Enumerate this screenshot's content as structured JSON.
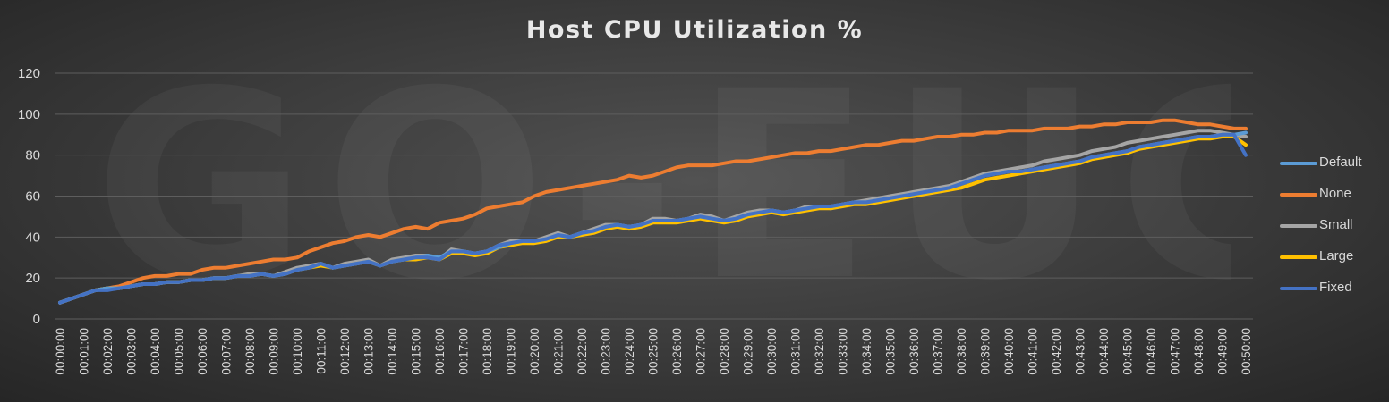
{
  "chart_data": {
    "type": "line",
    "title": "Host CPU Utilization %",
    "watermark": "GO-EUC",
    "xlabel": "",
    "ylabel": "",
    "ylim": [
      0,
      120
    ],
    "yticks": [
      0,
      20,
      40,
      60,
      80,
      100,
      120
    ],
    "grid": true,
    "legend_position": "right",
    "x_start_seconds": 0,
    "x_step_seconds": 30,
    "x_count": 101,
    "x_tick_labels": [
      "00:00:00",
      "00:01:00",
      "00:02:00",
      "00:03:00",
      "00:04:00",
      "00:05:00",
      "00:06:00",
      "00:07:00",
      "00:08:00",
      "00:09:00",
      "00:10:00",
      "00:11:00",
      "00:12:00",
      "00:13:00",
      "00:14:00",
      "00:15:00",
      "00:16:00",
      "00:17:00",
      "00:18:00",
      "00:19:00",
      "00:20:00",
      "00:21:00",
      "00:22:00",
      "00:23:00",
      "00:24:00",
      "00:25:00",
      "00:26:00",
      "00:27:00",
      "00:28:00",
      "00:29:00",
      "00:30:00",
      "00:31:00",
      "00:32:00",
      "00:33:00",
      "00:34:00",
      "00:35:00",
      "00:36:00",
      "00:37:00",
      "00:38:00",
      "00:39:00",
      "00:40:00",
      "00:41:00",
      "00:42:00",
      "00:43:00",
      "00:44:00",
      "00:45:00",
      "00:46:00",
      "00:47:00",
      "00:48:00",
      "00:49:00",
      "00:50:00"
    ],
    "series": [
      {
        "name": "Default",
        "color": "#5b9bd5",
        "values": [
          8,
          10,
          12,
          14,
          15,
          15,
          16,
          17,
          17,
          18,
          18,
          19,
          19,
          20,
          20,
          21,
          21,
          22,
          21,
          22,
          24,
          25,
          27,
          25,
          26,
          27,
          28,
          26,
          28,
          29,
          30,
          31,
          30,
          33,
          33,
          32,
          33,
          35,
          37,
          38,
          38,
          39,
          41,
          40,
          42,
          43,
          45,
          46,
          45,
          46,
          48,
          48,
          48,
          49,
          50,
          49,
          48,
          49,
          51,
          52,
          53,
          52,
          53,
          54,
          55,
          55,
          56,
          57,
          57,
          58,
          59,
          60,
          61,
          62,
          63,
          64,
          66,
          68,
          70,
          71,
          72,
          72,
          73,
          74,
          75,
          76,
          77,
          79,
          80,
          81,
          82,
          84,
          85,
          86,
          87,
          88,
          89,
          89,
          90,
          90,
          91
        ]
      },
      {
        "name": "None",
        "color": "#ed7d31",
        "values": [
          8,
          10,
          12,
          14,
          15,
          16,
          18,
          20,
          21,
          21,
          22,
          22,
          24,
          25,
          25,
          26,
          27,
          28,
          29,
          29,
          30,
          33,
          35,
          37,
          38,
          40,
          41,
          40,
          42,
          44,
          45,
          44,
          47,
          48,
          49,
          51,
          54,
          55,
          56,
          57,
          60,
          62,
          63,
          64,
          65,
          66,
          67,
          68,
          70,
          69,
          70,
          72,
          74,
          75,
          75,
          75,
          76,
          77,
          77,
          78,
          79,
          80,
          81,
          81,
          82,
          82,
          83,
          84,
          85,
          85,
          86,
          87,
          87,
          88,
          89,
          89,
          90,
          90,
          91,
          91,
          92,
          92,
          92,
          93,
          93,
          93,
          94,
          94,
          95,
          95,
          96,
          96,
          96,
          97,
          97,
          96,
          95,
          95,
          94,
          93,
          93
        ]
      },
      {
        "name": "Small",
        "color": "#a5a5a5",
        "values": [
          8,
          10,
          12,
          14,
          15,
          15,
          16,
          17,
          17,
          18,
          18,
          19,
          19,
          20,
          20,
          21,
          22,
          22,
          21,
          23,
          25,
          26,
          27,
          25,
          27,
          28,
          29,
          26,
          29,
          30,
          31,
          31,
          29,
          34,
          33,
          32,
          33,
          36,
          38,
          38,
          38,
          40,
          42,
          40,
          42,
          44,
          46,
          46,
          45,
          46,
          49,
          49,
          48,
          49,
          51,
          50,
          48,
          50,
          52,
          53,
          53,
          52,
          53,
          55,
          55,
          54,
          56,
          57,
          58,
          59,
          60,
          61,
          62,
          63,
          64,
          65,
          67,
          69,
          71,
          72,
          73,
          74,
          75,
          77,
          78,
          79,
          80,
          82,
          83,
          84,
          86,
          87,
          88,
          89,
          90,
          91,
          92,
          92,
          91,
          90,
          89
        ]
      },
      {
        "name": "Large",
        "color": "#ffc000",
        "values": [
          8,
          10,
          12,
          14,
          15,
          15,
          16,
          17,
          17,
          18,
          18,
          19,
          19,
          20,
          20,
          21,
          21,
          22,
          21,
          22,
          24,
          25,
          26,
          25,
          26,
          27,
          28,
          26,
          28,
          29,
          29,
          30,
          29,
          32,
          32,
          31,
          32,
          35,
          36,
          37,
          37,
          38,
          40,
          40,
          41,
          42,
          44,
          45,
          44,
          45,
          47,
          47,
          47,
          48,
          49,
          48,
          47,
          48,
          50,
          51,
          52,
          51,
          52,
          53,
          54,
          54,
          55,
          56,
          56,
          57,
          58,
          59,
          60,
          61,
          62,
          63,
          64,
          66,
          68,
          69,
          70,
          71,
          72,
          73,
          74,
          75,
          76,
          78,
          79,
          80,
          81,
          83,
          84,
          85,
          86,
          87,
          88,
          88,
          89,
          89,
          85
        ]
      },
      {
        "name": "Fixed",
        "color": "#4472c4",
        "values": [
          8,
          10,
          12,
          14,
          14,
          15,
          16,
          17,
          17,
          18,
          18,
          19,
          19,
          20,
          20,
          21,
          21,
          22,
          21,
          22,
          24,
          25,
          27,
          25,
          26,
          27,
          28,
          26,
          28,
          29,
          30,
          30,
          29,
          33,
          33,
          32,
          33,
          36,
          37,
          38,
          38,
          39,
          41,
          40,
          42,
          43,
          45,
          46,
          45,
          46,
          48,
          48,
          48,
          49,
          50,
          49,
          48,
          49,
          51,
          52,
          53,
          52,
          53,
          54,
          55,
          55,
          56,
          57,
          57,
          58,
          59,
          60,
          61,
          62,
          63,
          64,
          66,
          68,
          70,
          71,
          72,
          72,
          73,
          74,
          75,
          76,
          77,
          79,
          80,
          81,
          82,
          84,
          85,
          86,
          87,
          88,
          89,
          89,
          90,
          90,
          80
        ]
      }
    ]
  }
}
